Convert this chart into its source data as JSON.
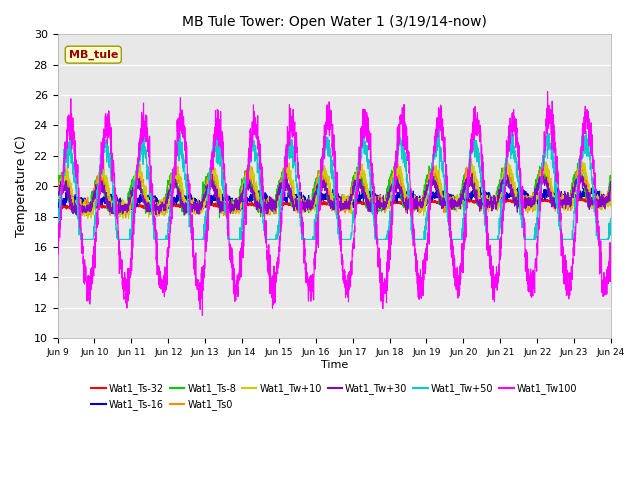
{
  "title": "MB Tule Tower: Open Water 1 (3/19/14-now)",
  "xlabel": "Time",
  "ylabel": "Temperature (C)",
  "ylim": [
    10,
    30
  ],
  "yticks": [
    10,
    12,
    14,
    16,
    18,
    20,
    22,
    24,
    26,
    28,
    30
  ],
  "bg_color": "#e8e8e8",
  "fig_bg": "#ffffff",
  "annotation_text": "MB_tule",
  "annotation_bg": "#ffffcc",
  "annotation_border": "#999900",
  "annotation_text_color": "#990000",
  "series_colors": {
    "Wat1_Ts-32": "#ff0000",
    "Wat1_Ts-16": "#0000cc",
    "Wat1_Ts-8": "#00cc00",
    "Wat1_Ts0": "#ff8800",
    "Wat1_Tw+10": "#cccc00",
    "Wat1_Tw+30": "#8800cc",
    "Wat1_Tw+50": "#00cccc",
    "Wat1_Tw100": "#ff00ff"
  },
  "x_tick_labels": [
    "Jun 9",
    "Jun 10",
    "Jun 11",
    "Jun 12",
    "Jun 13",
    "Jun 14",
    "Jun 15",
    "Jun 16",
    "Jun 17",
    "Jun 18",
    "Jun 19",
    "Jun 20",
    "Jun 21",
    "Jun 22",
    "Jun 23",
    "Jun 24"
  ],
  "n_points": 3000,
  "days": 15
}
